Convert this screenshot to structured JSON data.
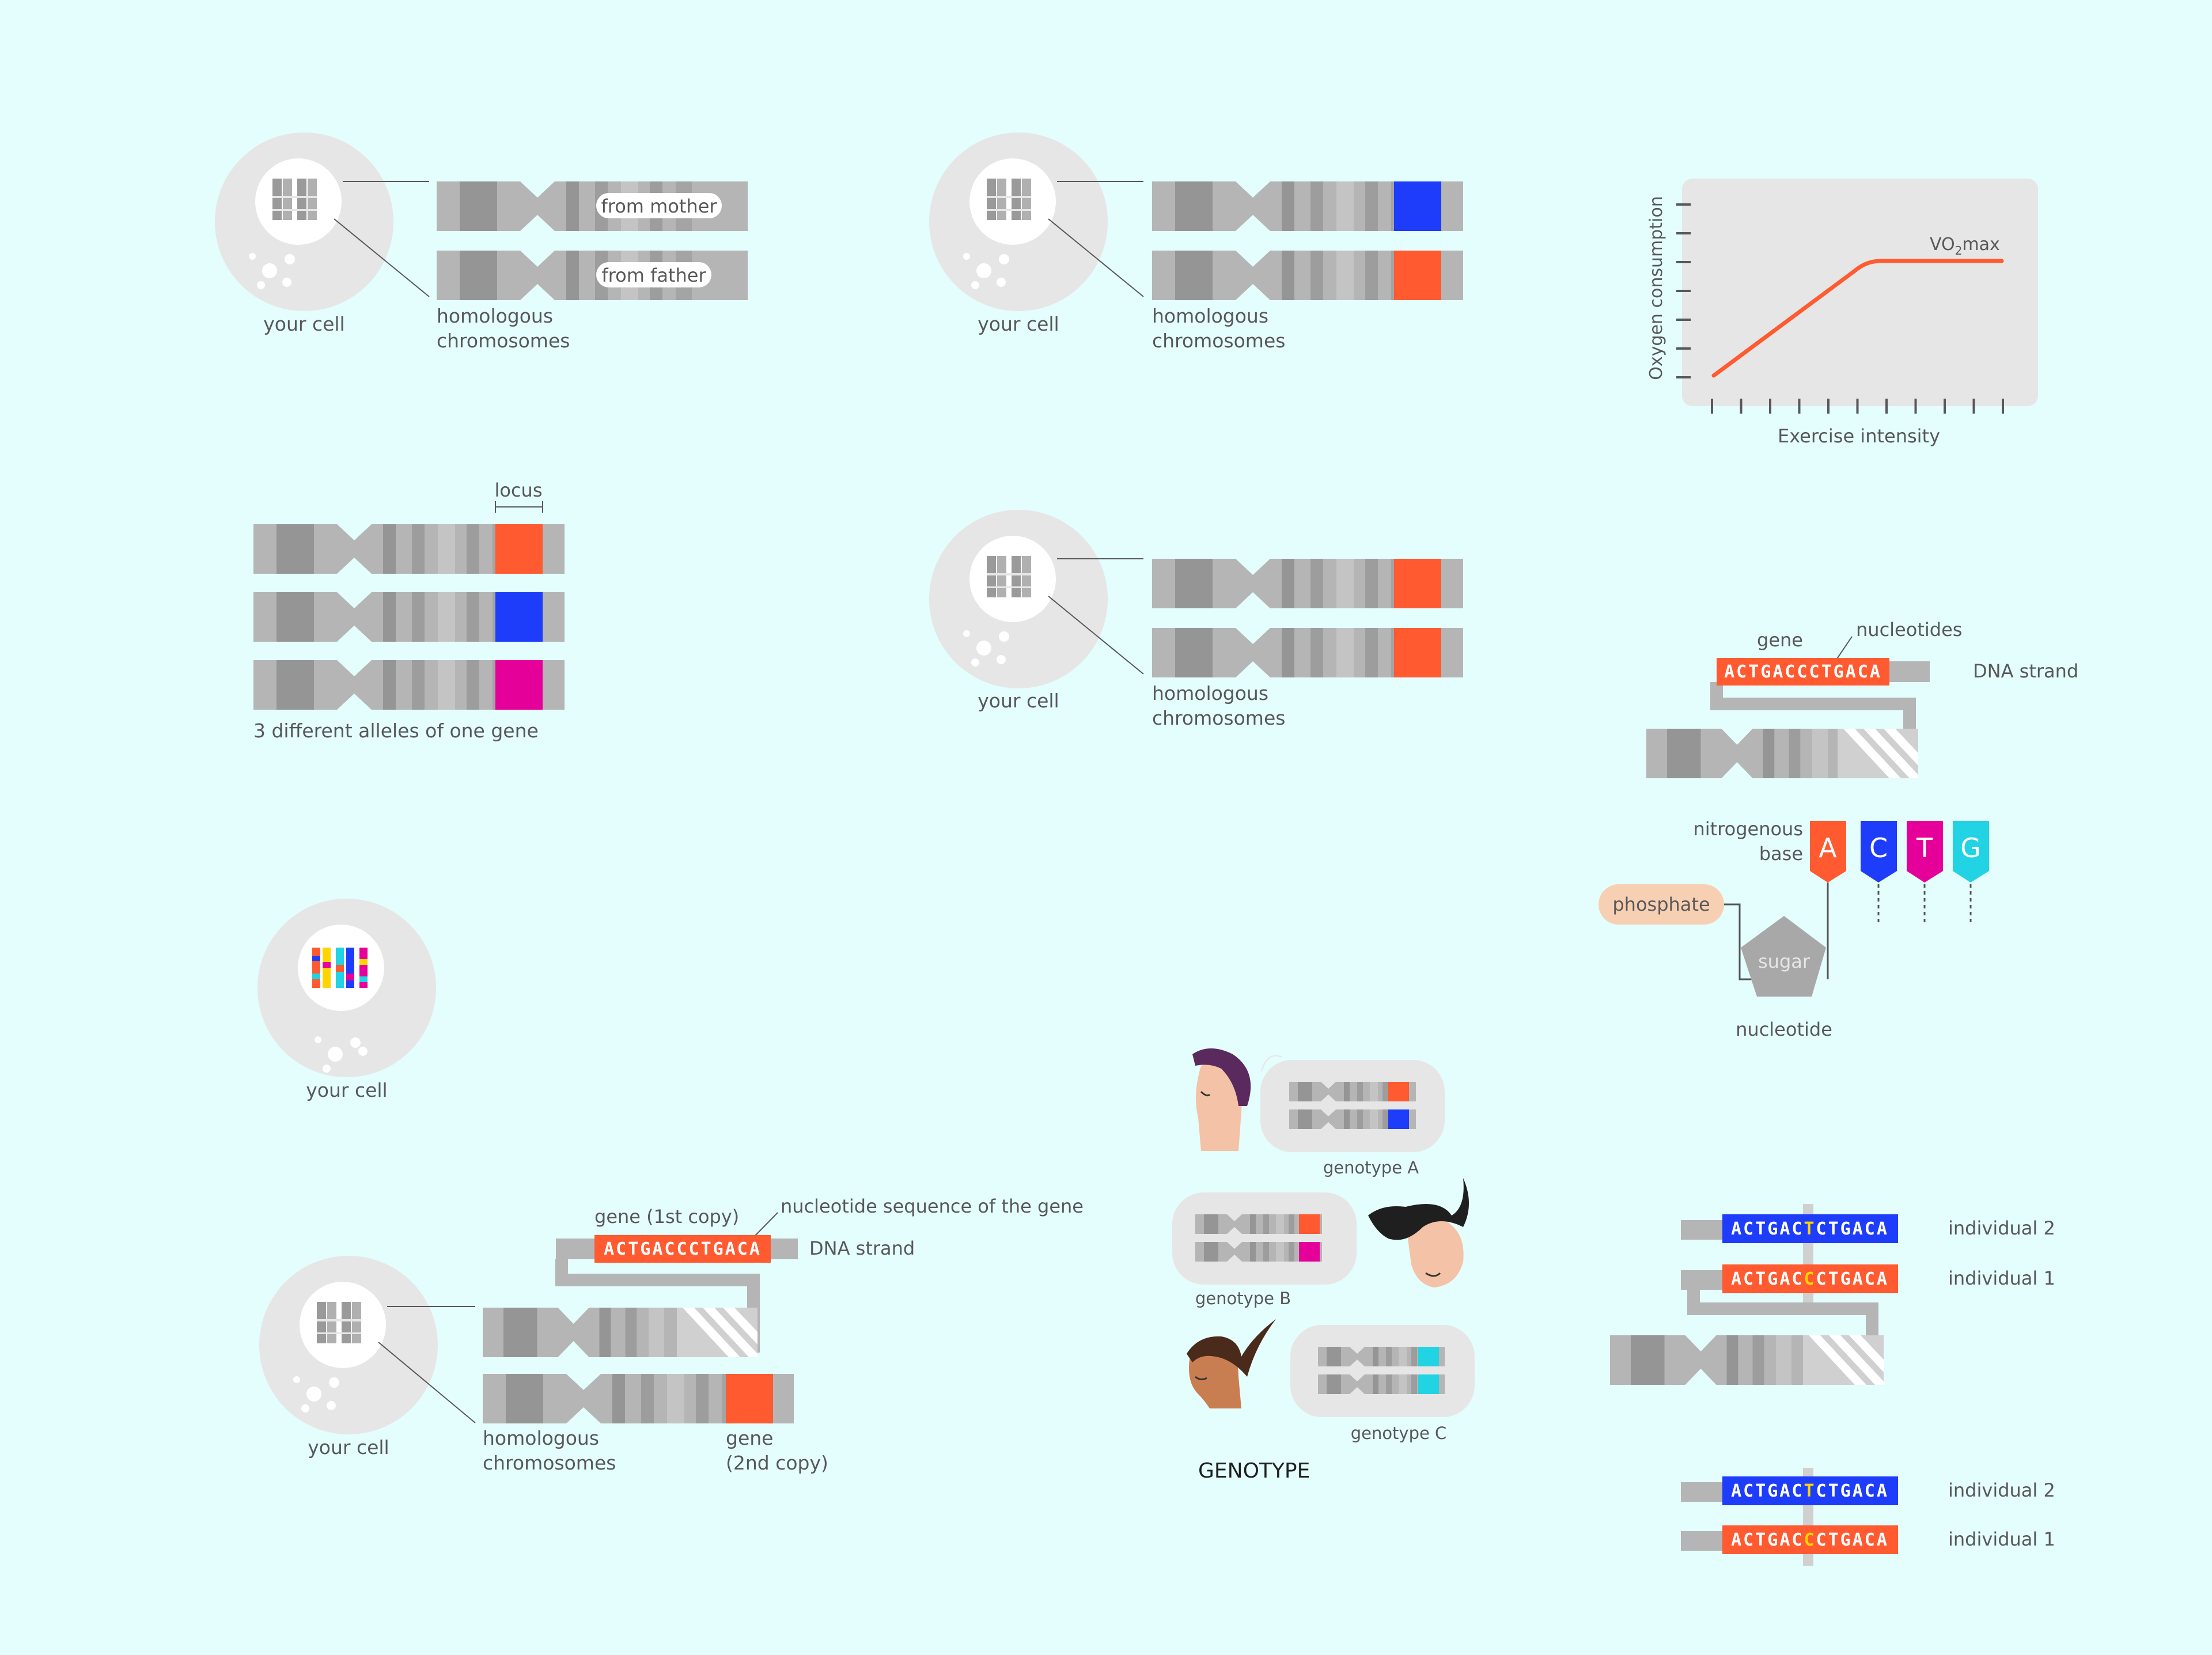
{
  "colors": {
    "background": "#e4fdfd",
    "cell": "#e6e6e6",
    "chromosome": "#b5b5b5",
    "chromosome_dark": "#959595",
    "red": "#ff5a30",
    "blue": "#1d3dfa",
    "magenta": "#e6009a",
    "cyan": "#22d3e3",
    "phosphate": "#f7d0b3",
    "sugar": "#a8a8a8",
    "text": "#58585a",
    "highlight": "#ffd400"
  },
  "cell_label": "your cell",
  "homologous_label": [
    "homologous",
    "chromosomes"
  ],
  "panel_parents": {
    "mother": "from mother",
    "father": "from father"
  },
  "panel_alleles": {
    "locus": "locus",
    "caption": "3 different alleles of one gene"
  },
  "vo2_chart": {
    "ylabel": "Oxygen consumption",
    "xlabel": "Exercise intensity",
    "curve_label_prefix": "VO",
    "curve_label_sub": "2",
    "curve_label_suffix": "max"
  },
  "dna_panel": {
    "gene": "gene",
    "nucleotides": "nucleotides",
    "sequence": "ACTGACCCTGACA",
    "strand": "DNA strand"
  },
  "nucleotide_panel": {
    "nitrogenous": [
      "nitrogenous",
      "base"
    ],
    "bases": [
      "A",
      "C",
      "T",
      "G"
    ],
    "phosphate": "phosphate",
    "sugar": "sugar",
    "nucleotide": "nucleotide"
  },
  "gene_copy_panel": {
    "gene_first": "gene (1st copy)",
    "nucleotide_seq": "nucleotide sequence of the gene",
    "sequence": "ACTGACCCTGACA",
    "strand": "DNA strand",
    "gene_second": [
      "gene",
      "(2nd copy)"
    ]
  },
  "genotype_panel": {
    "a": "genotype A",
    "b": "genotype B",
    "c": "genotype C",
    "title": "GENOTYPE"
  },
  "individuals_panel": {
    "seq2_pre": "ACTGAC",
    "seq2_mid": "T",
    "seq2_post": "CTGACA",
    "seq1_pre": "ACTGAC",
    "seq1_mid": "C",
    "seq1_post": "CTGACA",
    "ind2": "individual 2",
    "ind1": "individual 1"
  }
}
